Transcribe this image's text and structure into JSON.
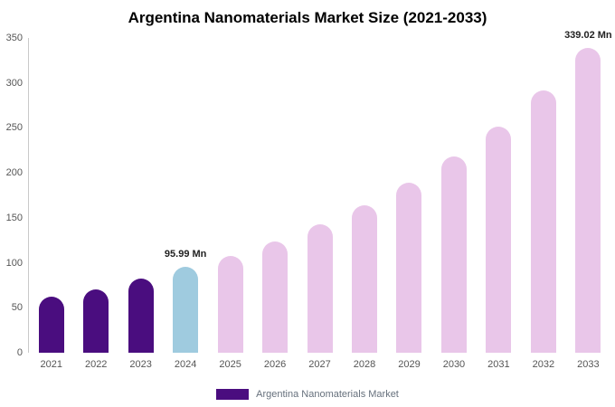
{
  "legend": {
    "label": "Argentina Nanomaterials Market",
    "swatch_color": "#4a0d7f"
  },
  "chart_data": {
    "type": "bar",
    "title": "Argentina Nanomaterials Market Size (2021-2033)",
    "categories": [
      "2021",
      "2022",
      "2023",
      "2024",
      "2025",
      "2026",
      "2027",
      "2028",
      "2029",
      "2030",
      "2031",
      "2032",
      "2033"
    ],
    "values": [
      62,
      70,
      82,
      95.99,
      108,
      124,
      143,
      164,
      189,
      218,
      251,
      292,
      339.02
    ],
    "unit": "Mn",
    "xlabel": "",
    "ylabel": "",
    "ylim": [
      0,
      350
    ],
    "yticks": [
      0,
      50,
      100,
      150,
      200,
      250,
      300,
      350
    ],
    "grid": false,
    "legend_position": "bottom",
    "bar_colors": [
      "#4a0d7f",
      "#4a0d7f",
      "#4a0d7f",
      "#9fcbdf",
      "#e9c6e9",
      "#e9c6e9",
      "#e9c6e9",
      "#e9c6e9",
      "#e9c6e9",
      "#e9c6e9",
      "#e9c6e9",
      "#e9c6e9",
      "#e9c6e9"
    ],
    "annotations": [
      {
        "category": "2024",
        "text": "95.99 Mn"
      },
      {
        "category": "2033",
        "text": "339.02 Mn"
      }
    ]
  }
}
